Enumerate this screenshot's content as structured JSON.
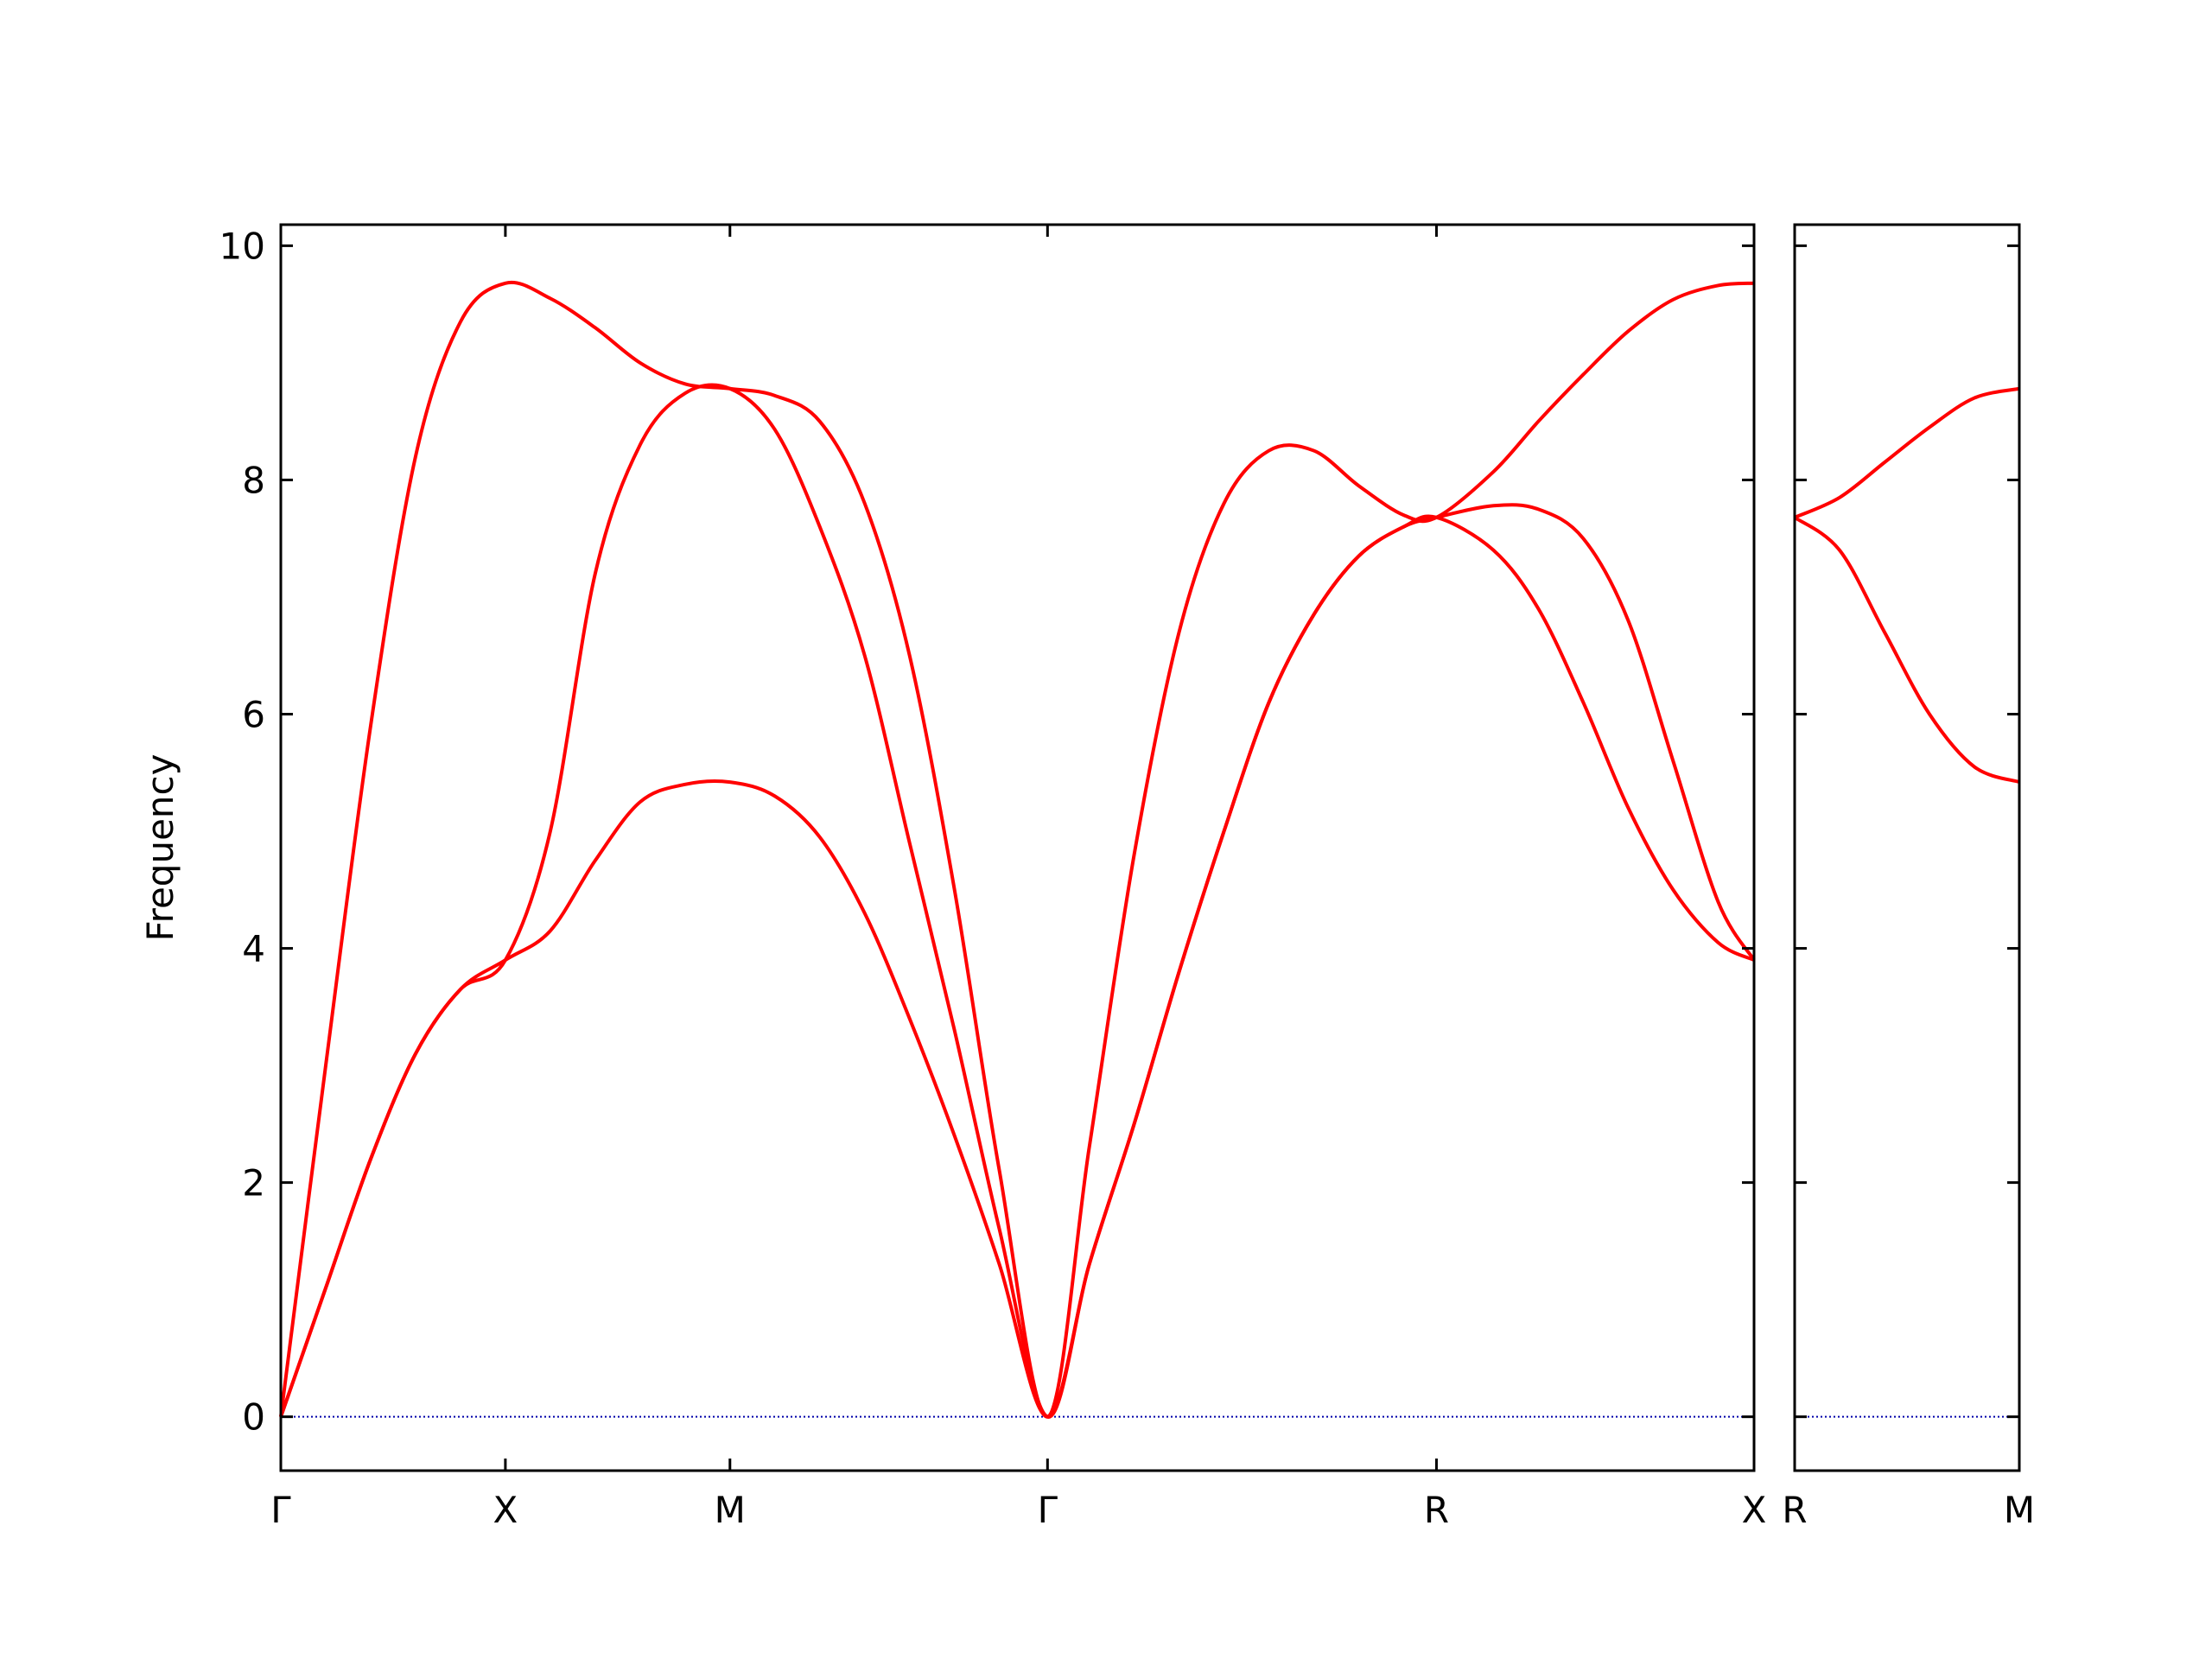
{
  "chart_data": [
    {
      "type": "line",
      "ylabel": "Frequency",
      "x": [
        0,
        0.1,
        0.2,
        0.3,
        0.4,
        0.5,
        0.6,
        0.7,
        0.8,
        0.9,
        1.0,
        1.1,
        1.2,
        1.3,
        1.4,
        1.5,
        1.6,
        1.7071,
        1.8,
        1.9,
        2.0,
        2.1,
        2.2,
        2.3,
        2.4,
        2.5,
        2.5731,
        2.7,
        2.8,
        2.9,
        3.0,
        3.1,
        3.2,
        3.2802
      ],
      "series": [
        {
          "color": "#ff0000",
          "values": [
            0,
            3.0,
            5.9,
            8.2,
            9.35,
            9.68,
            9.55,
            9.3,
            9.0,
            8.82,
            8.78,
            8.72,
            8.5,
            7.8,
            6.5,
            4.5,
            2.1,
            0,
            2.3,
            4.8,
            6.7,
            7.8,
            8.25,
            8.25,
            7.95,
            7.7,
            7.68,
            8.07,
            8.5,
            8.9,
            9.27,
            9.54,
            9.66,
            9.68
          ]
        },
        {
          "color": "#ff0000",
          "values": [
            0,
            1.1,
            2.2,
            3.1,
            3.65,
            3.9,
            5.0,
            7.2,
            8.3,
            8.74,
            8.78,
            8.43,
            7.6,
            6.5,
            4.9,
            3.3,
            1.6,
            0,
            1.3,
            2.5,
            3.8,
            5.0,
            6.1,
            6.85,
            7.35,
            7.6,
            7.68,
            7.78,
            7.75,
            7.5,
            6.8,
            5.6,
            4.4,
            3.9
          ]
        },
        {
          "color": "#ff0000",
          "values": [
            0,
            1.1,
            2.2,
            3.1,
            3.65,
            3.9,
            4.15,
            4.75,
            5.25,
            5.4,
            5.42,
            5.3,
            4.95,
            4.3,
            3.4,
            2.4,
            1.3,
            0,
            1.3,
            2.5,
            3.8,
            5.0,
            6.1,
            6.85,
            7.35,
            7.6,
            7.68,
            7.4,
            6.9,
            6.1,
            5.2,
            4.5,
            4.05,
            3.9
          ]
        }
      ],
      "xlim": [
        0,
        3.2802
      ],
      "xticks": [
        {
          "value": 0,
          "label": "Γ"
        },
        {
          "value": 0.5,
          "label": "X"
        },
        {
          "value": 1.0,
          "label": "M"
        },
        {
          "value": 1.7071,
          "label": "Γ"
        },
        {
          "value": 2.5731,
          "label": "R"
        },
        {
          "value": 3.2802,
          "label": "X"
        }
      ],
      "ylim": [
        -0.46,
        10.18
      ],
      "yticks": [
        0,
        2,
        4,
        6,
        8,
        10
      ],
      "ytick_labels": true,
      "zero_line": true,
      "zero_line_color": "#0000aa"
    },
    {
      "type": "line",
      "x": [
        0,
        0.1,
        0.2,
        0.3,
        0.4,
        0.5
      ],
      "series": [
        {
          "color": "#ff0000",
          "values": [
            7.68,
            7.85,
            8.15,
            8.45,
            8.7,
            8.78
          ]
        },
        {
          "color": "#ff0000",
          "values": [
            7.68,
            7.4,
            6.7,
            6.0,
            5.55,
            5.42
          ]
        }
      ],
      "xlim": [
        0,
        0.5
      ],
      "xticks": [
        {
          "value": 0,
          "label": "R"
        },
        {
          "value": 0.5,
          "label": "M"
        }
      ],
      "ylim": [
        -0.46,
        10.18
      ],
      "yticks": [
        0,
        2,
        4,
        6,
        8,
        10
      ],
      "ytick_labels": false,
      "zero_line": true,
      "zero_line_color": "#0000aa"
    }
  ]
}
